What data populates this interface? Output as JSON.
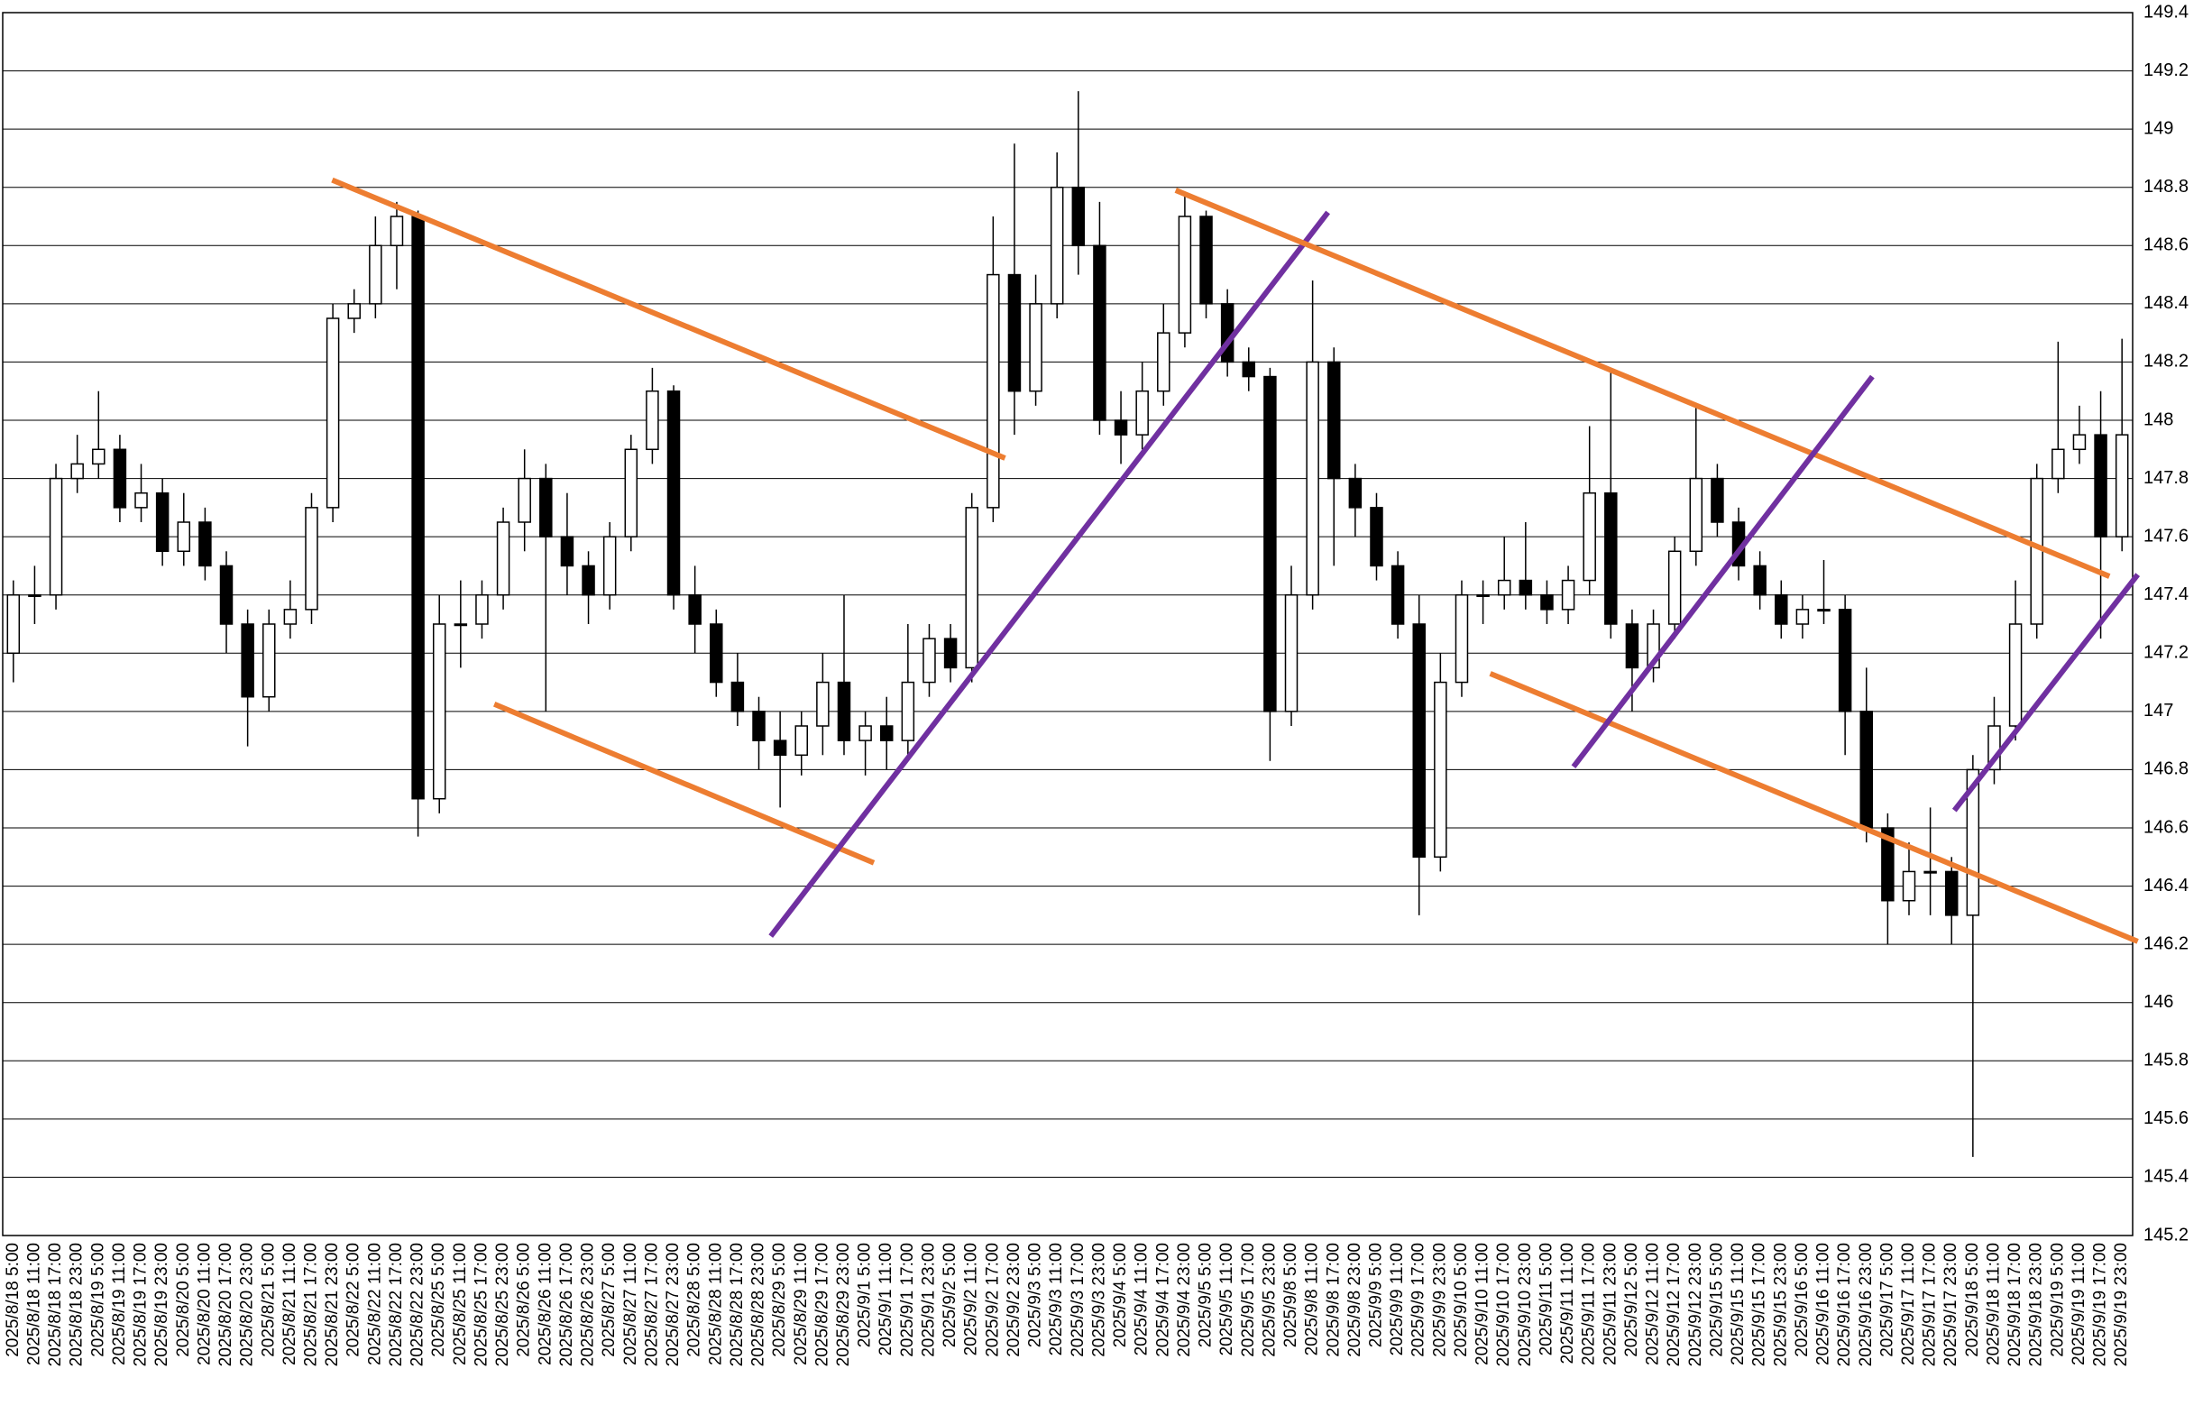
{
  "chart_data": {
    "type": "candlestick",
    "x": [
      "2025/8/18 5:00",
      "2025/8/18 11:00",
      "2025/8/18 17:00",
      "2025/8/18 23:00",
      "2025/8/19 5:00",
      "2025/8/19 11:00",
      "2025/8/19 17:00",
      "2025/8/19 23:00",
      "2025/8/20 5:00",
      "2025/8/20 11:00",
      "2025/8/20 17:00",
      "2025/8/20 23:00",
      "2025/8/21 5:00",
      "2025/8/21 11:00",
      "2025/8/21 17:00",
      "2025/8/21 23:00",
      "2025/8/22 5:00",
      "2025/8/22 11:00",
      "2025/8/22 17:00",
      "2025/8/22 23:00",
      "2025/8/25 5:00",
      "2025/8/25 11:00",
      "2025/8/25 17:00",
      "2025/8/25 23:00",
      "2025/8/26 5:00",
      "2025/8/26 11:00",
      "2025/8/26 17:00",
      "2025/8/26 23:00",
      "2025/8/27 5:00",
      "2025/8/27 11:00",
      "2025/8/27 17:00",
      "2025/8/27 23:00",
      "2025/8/28 5:00",
      "2025/8/28 11:00",
      "2025/8/28 17:00",
      "2025/8/28 23:00",
      "2025/8/29 5:00",
      "2025/8/29 11:00",
      "2025/8/29 17:00",
      "2025/8/29 23:00",
      "2025/9/1 5:00",
      "2025/9/1 11:00",
      "2025/9/1 17:00",
      "2025/9/1 23:00",
      "2025/9/2 5:00",
      "2025/9/2 11:00",
      "2025/9/2 17:00",
      "2025/9/2 23:00",
      "2025/9/3 5:00",
      "2025/9/3 11:00",
      "2025/9/3 17:00",
      "2025/9/3 23:00",
      "2025/9/4 5:00",
      "2025/9/4 11:00",
      "2025/9/4 17:00",
      "2025/9/4 23:00",
      "2025/9/5 5:00",
      "2025/9/5 11:00",
      "2025/9/5 17:00",
      "2025/9/5 23:00",
      "2025/9/8 5:00",
      "2025/9/8 11:00",
      "2025/9/8 17:00",
      "2025/9/8 23:00",
      "2025/9/9 5:00",
      "2025/9/9 11:00",
      "2025/9/9 17:00",
      "2025/9/9 23:00",
      "2025/9/10 5:00",
      "2025/9/10 11:00",
      "2025/9/10 17:00",
      "2025/9/10 23:00",
      "2025/9/11 5:00",
      "2025/9/11 11:00",
      "2025/9/11 17:00",
      "2025/9/11 23:00",
      "2025/9/12 5:00",
      "2025/9/12 11:00",
      "2025/9/12 17:00",
      "2025/9/12 23:00",
      "2025/9/15 5:00",
      "2025/9/15 11:00",
      "2025/9/15 17:00",
      "2025/9/15 23:00",
      "2025/9/16 5:00",
      "2025/9/16 11:00",
      "2025/9/16 17:00",
      "2025/9/16 23:00",
      "2025/9/17 5:00",
      "2025/9/17 11:00",
      "2025/9/17 17:00",
      "2025/9/17 23:00",
      "2025/9/18 5:00",
      "2025/9/18 11:00",
      "2025/9/18 17:00",
      "2025/9/18 23:00",
      "2025/9/19 5:00",
      "2025/9/19 11:00",
      "2025/9/19 17:00",
      "2025/9/19 23:00"
    ],
    "candles": [
      [
        147.2,
        147.45,
        147.1,
        147.4
      ],
      [
        147.4,
        147.5,
        147.3,
        147.4
      ],
      [
        147.4,
        147.85,
        147.35,
        147.8
      ],
      [
        147.8,
        147.95,
        147.75,
        147.85
      ],
      [
        147.85,
        148.1,
        147.8,
        147.9
      ],
      [
        147.9,
        147.95,
        147.65,
        147.7
      ],
      [
        147.7,
        147.85,
        147.65,
        147.75
      ],
      [
        147.75,
        147.8,
        147.5,
        147.55
      ],
      [
        147.55,
        147.75,
        147.5,
        147.65
      ],
      [
        147.65,
        147.7,
        147.45,
        147.5
      ],
      [
        147.5,
        147.55,
        147.2,
        147.3
      ],
      [
        147.3,
        147.35,
        146.88,
        147.05
      ],
      [
        147.05,
        147.35,
        147.0,
        147.3
      ],
      [
        147.3,
        147.45,
        147.25,
        147.35
      ],
      [
        147.35,
        147.75,
        147.3,
        147.7
      ],
      [
        147.7,
        148.4,
        147.65,
        148.35
      ],
      [
        148.35,
        148.45,
        148.3,
        148.4
      ],
      [
        148.4,
        148.7,
        148.35,
        148.6
      ],
      [
        148.6,
        148.75,
        148.45,
        148.7
      ],
      [
        148.7,
        148.72,
        146.57,
        146.7
      ],
      [
        146.7,
        147.4,
        146.65,
        147.3
      ],
      [
        147.3,
        147.45,
        147.15,
        147.3
      ],
      [
        147.3,
        147.45,
        147.25,
        147.4
      ],
      [
        147.4,
        147.7,
        147.35,
        147.65
      ],
      [
        147.65,
        147.9,
        147.55,
        147.8
      ],
      [
        147.8,
        147.85,
        147.0,
        147.6
      ],
      [
        147.6,
        147.75,
        147.4,
        147.5
      ],
      [
        147.5,
        147.55,
        147.3,
        147.4
      ],
      [
        147.4,
        147.65,
        147.35,
        147.6
      ],
      [
        147.6,
        147.95,
        147.55,
        147.9
      ],
      [
        147.9,
        148.18,
        147.85,
        148.1
      ],
      [
        148.1,
        148.12,
        147.35,
        147.4
      ],
      [
        147.4,
        147.5,
        147.2,
        147.3
      ],
      [
        147.3,
        147.35,
        147.05,
        147.1
      ],
      [
        147.1,
        147.2,
        146.95,
        147.0
      ],
      [
        147.0,
        147.05,
        146.8,
        146.9
      ],
      [
        146.9,
        147.0,
        146.67,
        146.85
      ],
      [
        146.85,
        147.0,
        146.78,
        146.95
      ],
      [
        146.95,
        147.2,
        146.85,
        147.1
      ],
      [
        147.1,
        147.4,
        146.85,
        146.9
      ],
      [
        146.9,
        147.0,
        146.78,
        146.95
      ],
      [
        146.95,
        147.05,
        146.8,
        146.9
      ],
      [
        146.9,
        147.3,
        146.85,
        147.1
      ],
      [
        147.1,
        147.3,
        147.05,
        147.25
      ],
      [
        147.25,
        147.3,
        147.1,
        147.15
      ],
      [
        147.15,
        147.75,
        147.1,
        147.7
      ],
      [
        147.7,
        148.7,
        147.65,
        148.5
      ],
      [
        148.5,
        148.95,
        147.95,
        148.1
      ],
      [
        148.1,
        148.5,
        148.05,
        148.4
      ],
      [
        148.4,
        148.92,
        148.35,
        148.8
      ],
      [
        148.8,
        149.13,
        148.5,
        148.6
      ],
      [
        148.6,
        148.75,
        147.95,
        148.0
      ],
      [
        148.0,
        148.1,
        147.85,
        147.95
      ],
      [
        147.95,
        148.2,
        147.9,
        148.1
      ],
      [
        148.1,
        148.4,
        148.05,
        148.3
      ],
      [
        148.3,
        148.78,
        148.25,
        148.7
      ],
      [
        148.7,
        148.72,
        148.35,
        148.4
      ],
      [
        148.4,
        148.45,
        148.15,
        148.2
      ],
      [
        148.2,
        148.25,
        148.1,
        148.15
      ],
      [
        148.15,
        148.18,
        146.83,
        147.0
      ],
      [
        147.0,
        147.5,
        146.95,
        147.4
      ],
      [
        147.4,
        148.48,
        147.35,
        148.2
      ],
      [
        148.2,
        148.25,
        147.5,
        147.8
      ],
      [
        147.8,
        147.85,
        147.6,
        147.7
      ],
      [
        147.7,
        147.75,
        147.45,
        147.5
      ],
      [
        147.5,
        147.55,
        147.25,
        147.3
      ],
      [
        147.3,
        147.4,
        146.3,
        146.5
      ],
      [
        146.5,
        147.2,
        146.45,
        147.1
      ],
      [
        147.1,
        147.45,
        147.05,
        147.4
      ],
      [
        147.4,
        147.45,
        147.3,
        147.4
      ],
      [
        147.4,
        147.6,
        147.35,
        147.45
      ],
      [
        147.45,
        147.65,
        147.35,
        147.4
      ],
      [
        147.4,
        147.45,
        147.3,
        147.35
      ],
      [
        147.35,
        147.5,
        147.3,
        147.45
      ],
      [
        147.45,
        147.98,
        147.4,
        147.75
      ],
      [
        147.75,
        148.18,
        147.25,
        147.3
      ],
      [
        147.3,
        147.35,
        147.0,
        147.15
      ],
      [
        147.15,
        147.35,
        147.1,
        147.3
      ],
      [
        147.3,
        147.6,
        147.25,
        147.55
      ],
      [
        147.55,
        148.06,
        147.5,
        147.8
      ],
      [
        147.8,
        147.85,
        147.6,
        147.65
      ],
      [
        147.65,
        147.7,
        147.45,
        147.5
      ],
      [
        147.5,
        147.55,
        147.35,
        147.4
      ],
      [
        147.4,
        147.45,
        147.25,
        147.3
      ],
      [
        147.3,
        147.4,
        147.25,
        147.35
      ],
      [
        147.35,
        147.52,
        147.3,
        147.35
      ],
      [
        147.35,
        147.4,
        146.85,
        147.0
      ],
      [
        147.0,
        147.15,
        146.55,
        146.6
      ],
      [
        146.6,
        146.65,
        146.2,
        146.35
      ],
      [
        146.35,
        146.55,
        146.3,
        146.45
      ],
      [
        146.45,
        146.67,
        146.3,
        146.45
      ],
      [
        146.45,
        146.5,
        146.2,
        146.3
      ],
      [
        146.3,
        146.85,
        145.47,
        146.8
      ],
      [
        146.8,
        147.05,
        146.75,
        146.95
      ],
      [
        146.95,
        147.45,
        146.9,
        147.3
      ],
      [
        147.3,
        147.85,
        147.25,
        147.8
      ],
      [
        147.8,
        148.27,
        147.75,
        147.9
      ],
      [
        147.9,
        148.05,
        147.85,
        147.95
      ],
      [
        147.95,
        148.1,
        147.25,
        147.6
      ],
      [
        147.6,
        148.28,
        147.55,
        147.95
      ]
    ],
    "up_color": "#ffffff",
    "down_color": "#000000",
    "ylim": [
      145.2,
      149.4
    ],
    "yticks": [
      145.2,
      145.4,
      145.6,
      145.8,
      146,
      146.2,
      146.4,
      146.6,
      146.8,
      147,
      147.2,
      147.4,
      147.6,
      147.8,
      148,
      148.2,
      148.4,
      148.6,
      148.8,
      149,
      149.2,
      149.4
    ],
    "grid": true,
    "y_axis_side": "right",
    "trendlines": [
      {
        "color": "#ed7d31",
        "x": [
          14.97,
          46.56
        ],
        "y": [
          148.825,
          147.87
        ]
      },
      {
        "color": "#ed7d31",
        "x": [
          22.58,
          40.4
        ],
        "y": [
          147.025,
          146.48
        ]
      },
      {
        "color": "#7030a0",
        "x": [
          35.56,
          61.72
        ],
        "y": [
          146.228,
          148.714
        ]
      },
      {
        "color": "#ed7d31",
        "x": [
          54.57,
          98.41
        ],
        "y": [
          148.79,
          147.464
        ]
      },
      {
        "color": "#ed7d31",
        "x": [
          69.34,
          99.74
        ],
        "y": [
          147.13,
          146.21
        ]
      },
      {
        "color": "#7030a0",
        "x": [
          73.25,
          87.28
        ],
        "y": [
          146.81,
          148.15
        ]
      },
      {
        "color": "#7030a0",
        "x": [
          91.13,
          99.74
        ],
        "y": [
          146.66,
          147.47
        ]
      }
    ]
  }
}
